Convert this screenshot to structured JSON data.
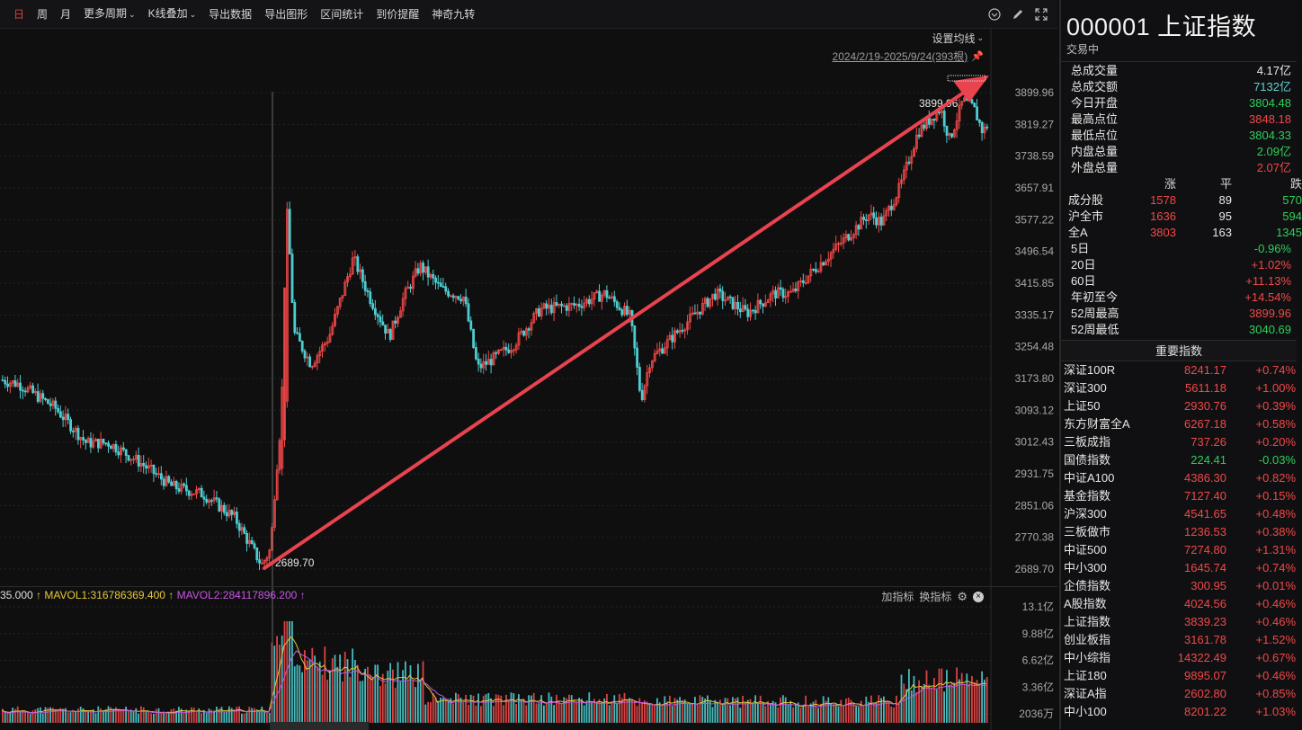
{
  "toolbar": {
    "items": [
      "日",
      "周",
      "月",
      "更多周期",
      "K线叠加",
      "导出数据",
      "导出图形",
      "区间统计",
      "到价提醒",
      "神奇九转"
    ],
    "dropdown": [
      false,
      false,
      false,
      true,
      true,
      false,
      false,
      false,
      false,
      false
    ]
  },
  "chart": {
    "ma_setting": "设置均线",
    "range": "2024/2/19-2025/9/24(393根)",
    "y_labels": [
      "3899.96",
      "3819.27",
      "3738.59",
      "3657.91",
      "3577.22",
      "3496.54",
      "3415.85",
      "3335.17",
      "3254.48",
      "3173.80",
      "3093.12",
      "3012.43",
      "2931.75",
      "2851.06",
      "2770.38",
      "2689.70"
    ],
    "low_marker": "2689.70",
    "high_marker": "3899.96",
    "colors": {
      "up": "#f04848",
      "down": "#4ecdd0",
      "ma1": "#e6c83a",
      "ma2": "#c657e0",
      "arrow": "#e8434e"
    }
  },
  "volume": {
    "legend_prefix": "35.000",
    "mavol1": "MAVOL1:316786369.400",
    "mavol2": "MAVOL2:284117896.200",
    "add_indicator": "加指标",
    "switch_indicator": "换指标",
    "y_labels": [
      "13.1亿",
      "9.88亿",
      "6.62亿",
      "3.36亿",
      "2036万"
    ]
  },
  "side": {
    "code": "000001",
    "name": "上证指数",
    "status": "交易中",
    "stats": [
      {
        "k": "总成交量",
        "v": "4.17亿",
        "c": "white"
      },
      {
        "k": "总成交额",
        "v": "7132亿",
        "c": "cyan"
      },
      {
        "k": "今日开盘",
        "v": "3804.48",
        "c": "green"
      },
      {
        "k": "最高点位",
        "v": "3848.18",
        "c": "red"
      },
      {
        "k": "最低点位",
        "v": "3804.33",
        "c": "green"
      },
      {
        "k": "内盘总量",
        "v": "2.09亿",
        "c": "green"
      },
      {
        "k": "外盘总量",
        "v": "2.07亿",
        "c": "red"
      }
    ],
    "breadth_hdr": [
      "",
      "涨",
      "平",
      "跌"
    ],
    "breadth": [
      [
        "成分股",
        "1578",
        "89",
        "570"
      ],
      [
        "沪全市",
        "1636",
        "95",
        "594"
      ],
      [
        "全A",
        "3803",
        "163",
        "1345"
      ]
    ],
    "returns": [
      {
        "k": "5日",
        "v": "-0.96%",
        "c": "green"
      },
      {
        "k": "20日",
        "v": "+1.02%",
        "c": "red"
      },
      {
        "k": "60日",
        "v": "+11.13%",
        "c": "red"
      },
      {
        "k": "年初至今",
        "v": "+14.54%",
        "c": "red"
      },
      {
        "k": "52周最高",
        "v": "3899.96",
        "c": "red"
      },
      {
        "k": "52周最低",
        "v": "3040.69",
        "c": "green"
      }
    ],
    "index_header": "重要指数",
    "indices": [
      [
        "深证100R",
        "8241.17",
        "+0.74%"
      ],
      [
        "深证300",
        "5611.18",
        "+1.00%"
      ],
      [
        "上证50",
        "2930.76",
        "+0.39%"
      ],
      [
        "东方财富全A",
        "6267.18",
        "+0.58%"
      ],
      [
        "三板成指",
        "737.26",
        "+0.20%"
      ],
      [
        "国债指数",
        "224.41",
        "-0.03%"
      ],
      [
        "中证A100",
        "4386.30",
        "+0.82%"
      ],
      [
        "基金指数",
        "7127.40",
        "+0.15%"
      ],
      [
        "沪深300",
        "4541.65",
        "+0.48%"
      ],
      [
        "三板做市",
        "1236.53",
        "+0.38%"
      ],
      [
        "中证500",
        "7274.80",
        "+1.31%"
      ],
      [
        "中小300",
        "1645.74",
        "+0.74%"
      ],
      [
        "企债指数",
        "300.95",
        "+0.01%"
      ],
      [
        "A股指数",
        "4024.56",
        "+0.46%"
      ],
      [
        "上证指数",
        "3839.23",
        "+0.46%"
      ],
      [
        "创业板指",
        "3161.78",
        "+1.52%"
      ],
      [
        "中小综指",
        "14322.49",
        "+0.67%"
      ],
      [
        "上证180",
        "9895.07",
        "+0.46%"
      ],
      [
        "深证A指",
        "2602.80",
        "+0.85%"
      ],
      [
        "中小100",
        "8201.22",
        "+1.03%"
      ]
    ]
  }
}
